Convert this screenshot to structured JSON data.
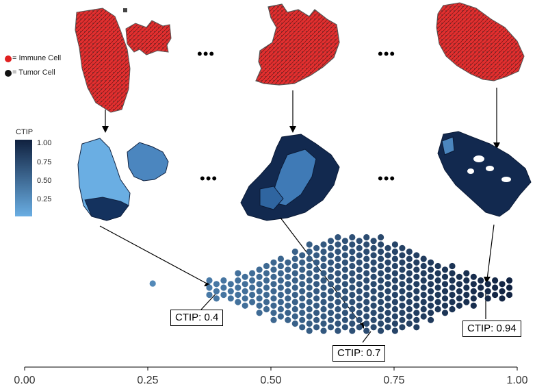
{
  "legend": {
    "immune_label": "= Immune Cell",
    "tumor_label": "= Tumor Cell",
    "immune_color": "#e02020",
    "tumor_color": "#111111"
  },
  "colorbar": {
    "title": "CTIP",
    "ticks": [
      "1.00",
      "0.75",
      "0.50",
      "0.25"
    ],
    "color_low": "#6aaee3",
    "color_high": "#10213f"
  },
  "ellipsis": "•••",
  "callouts": [
    {
      "text": "CTIP: 0.4",
      "value": 0.4
    },
    {
      "text": "CTIP: 0.7",
      "value": 0.7
    },
    {
      "text": "CTIP: 0.94",
      "value": 0.94
    }
  ],
  "axis": {
    "tick_labels": [
      "0.00",
      "0.25",
      "0.50",
      "0.75",
      "1.00"
    ],
    "tick_values": [
      0,
      0.25,
      0.5,
      0.75,
      1.0
    ],
    "range": [
      0,
      1
    ]
  }
}
